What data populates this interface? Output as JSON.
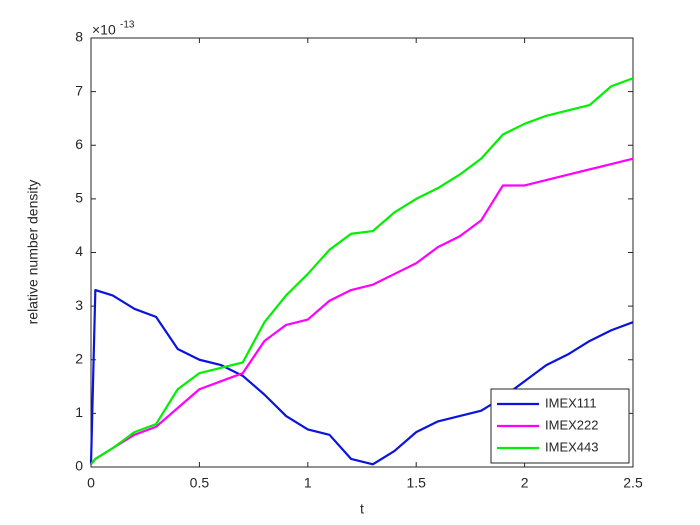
{
  "chart_data": {
    "type": "line",
    "xlabel": "t",
    "ylabel": "relative number density",
    "exponent_base": "×10",
    "exponent_power": "-13",
    "x": [
      0,
      0.02,
      0.1,
      0.2,
      0.3,
      0.4,
      0.5,
      0.6,
      0.7,
      0.8,
      0.9,
      1.0,
      1.1,
      1.2,
      1.3,
      1.4,
      1.5,
      1.6,
      1.7,
      1.8,
      1.9,
      2.0,
      2.1,
      2.2,
      2.3,
      2.4,
      2.5
    ],
    "series": [
      {
        "name": "IMEX111",
        "color": "#0a14dc",
        "values": [
          0.05,
          3.3,
          3.2,
          2.95,
          2.8,
          2.2,
          2.0,
          1.9,
          1.7,
          1.35,
          0.95,
          0.7,
          0.6,
          0.15,
          0.05,
          0.3,
          0.65,
          0.85,
          0.95,
          1.05,
          1.3,
          1.6,
          1.9,
          2.1,
          2.35,
          2.55,
          2.7
        ]
      },
      {
        "name": "IMEX222",
        "color": "#ff00ff",
        "values": [
          0.05,
          0.15,
          0.35,
          0.6,
          0.75,
          1.1,
          1.45,
          1.6,
          1.75,
          2.35,
          2.65,
          2.75,
          3.1,
          3.3,
          3.4,
          3.6,
          3.8,
          4.1,
          4.3,
          4.6,
          5.25,
          5.25,
          5.35,
          5.45,
          5.55,
          5.65,
          5.75
        ]
      },
      {
        "name": "IMEX443",
        "color": "#00f000",
        "values": [
          0.05,
          0.15,
          0.35,
          0.65,
          0.8,
          1.45,
          1.75,
          1.85,
          1.95,
          2.7,
          3.2,
          3.6,
          4.05,
          4.35,
          4.4,
          4.75,
          5.0,
          5.2,
          5.45,
          5.75,
          6.2,
          6.4,
          6.55,
          6.65,
          6.75,
          7.1,
          7.25
        ]
      }
    ],
    "xlim": [
      0,
      2.5
    ],
    "xticks": [
      0,
      0.5,
      1,
      1.5,
      2,
      2.5
    ],
    "ylim": [
      0,
      8
    ],
    "yticks": [
      0,
      1,
      2,
      3,
      4,
      5,
      6,
      7,
      8
    ],
    "grid": false,
    "legend": "lower right"
  }
}
